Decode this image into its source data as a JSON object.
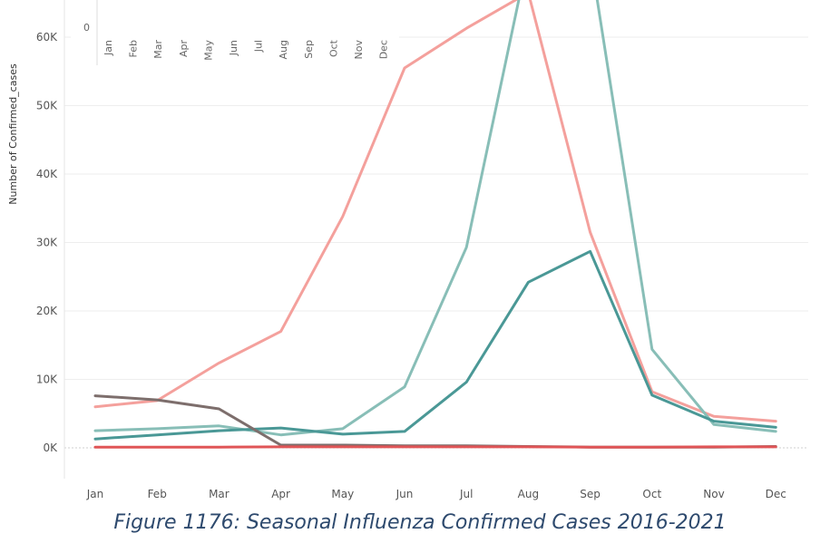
{
  "caption": "Figure 1176: Seasonal Influenza Confirmed Cases 2016-2021",
  "chart_data": {
    "type": "line",
    "title": "",
    "xlabel": "",
    "ylabel": "Number of Confirmed_cases",
    "categories": [
      "Jan",
      "Feb",
      "Mar",
      "Apr",
      "May",
      "Jun",
      "Jul",
      "Aug",
      "Sep",
      "Oct",
      "Nov",
      "Dec"
    ],
    "y_ticks": [
      "0K",
      "10K",
      "20K",
      "30K",
      "40K",
      "50K",
      "60K"
    ],
    "ylim": [
      -5000,
      70000
    ],
    "grid": true,
    "legend": "none",
    "series": [
      {
        "color": "#f4a09c",
        "values": [
          6000,
          6900,
          12400,
          17000,
          33800,
          55500,
          61300,
          66500,
          31500,
          8200,
          4600,
          3900
        ]
      },
      {
        "color": "#88beb7",
        "values": [
          2500,
          2800,
          3200,
          1900,
          2800,
          8900,
          29300,
          72000,
          72000,
          14400,
          3400,
          2400
        ]
      },
      {
        "color": "#4a9896",
        "values": [
          1300,
          1900,
          2500,
          2900,
          2000,
          2400,
          9600,
          24200,
          28700,
          7700,
          3900,
          3000
        ]
      },
      {
        "color": "#7d6e6c",
        "values": [
          7600,
          7000,
          5700,
          400,
          400,
          300,
          300,
          200,
          100,
          100,
          100,
          200
        ]
      },
      {
        "color": "#e05557",
        "values": [
          100,
          100,
          100,
          150,
          150,
          150,
          150,
          150,
          100,
          100,
          150,
          150
        ]
      }
    ],
    "inset": {
      "categories": [
        "Jan",
        "Feb",
        "Mar",
        "Apr",
        "May",
        "Jun",
        "Jul",
        "Aug",
        "Sep",
        "Oct",
        "Nov",
        "Dec"
      ],
      "y_ticks": [
        "0"
      ]
    }
  }
}
